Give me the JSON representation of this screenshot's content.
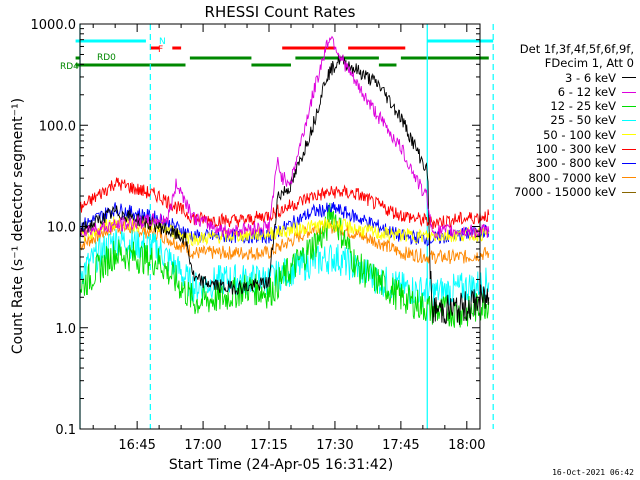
{
  "chart_data": {
    "type": "line",
    "title": "RHESSI Count Rates",
    "xlabel": "Start Time (24-Apr-05 16:31:42)",
    "ylabel": "Count Rate (s⁻¹ detector segment⁻¹)",
    "y_scale": "log",
    "ylim": [
      0.1,
      1000
    ],
    "xlim_minutes_after_1630": [
      2,
      93
    ],
    "x_ticks": [
      "16:45",
      "17:00",
      "17:15",
      "17:30",
      "17:45",
      "18:00"
    ],
    "y_ticks": [
      "0.1",
      "1.0",
      "10.0",
      "100.0",
      "1000.0"
    ],
    "legend_header": [
      "Det 1f,3f,4f,5f,6f,9f,",
      "FDecim 1, Att 0"
    ],
    "series": [
      {
        "name": "3 - 6 keV",
        "color": "#000000",
        "x": [
          "16:32",
          "16:40",
          "16:50",
          "16:56",
          "16:58",
          "17:05",
          "17:10",
          "17:15",
          "17:17",
          "17:20",
          "17:25",
          "17:28",
          "17:31",
          "17:35",
          "17:40",
          "17:45",
          "17:51",
          "17:52",
          "17:58",
          "18:05"
        ],
        "y": [
          9,
          14,
          10,
          7.5,
          3,
          2.5,
          2.5,
          2.8,
          20,
          25,
          100,
          300,
          450,
          350,
          250,
          120,
          35,
          1.5,
          1.5,
          2
        ]
      },
      {
        "name": "6 - 12 keV",
        "color": "#dd00dd",
        "x": [
          "16:32",
          "16:45",
          "16:52",
          "16:54",
          "16:58",
          "17:05",
          "17:15",
          "17:17",
          "17:18",
          "17:20",
          "17:25",
          "17:28",
          "17:29",
          "17:31",
          "17:35",
          "17:40",
          "17:45",
          "17:50",
          "17:51",
          "17:52",
          "18:05"
        ],
        "y": [
          9,
          11,
          12,
          27,
          12,
          9,
          10,
          45,
          30,
          28,
          200,
          600,
          780,
          500,
          250,
          120,
          60,
          22,
          20,
          9,
          9
        ]
      },
      {
        "name": "12 - 25 keV",
        "color": "#00dd00",
        "x": [
          "16:32",
          "16:40",
          "16:50",
          "16:58",
          "17:05",
          "17:10",
          "17:15",
          "17:25",
          "17:28",
          "17:29",
          "17:35",
          "17:45",
          "17:52",
          "18:00",
          "18:05"
        ],
        "y": [
          2.5,
          5.5,
          4.5,
          1.8,
          2,
          2.5,
          2.2,
          6.5,
          9,
          15,
          4,
          2,
          1.5,
          1.4,
          1.8
        ]
      },
      {
        "name": "25 - 50 keV",
        "color": "#00ffff",
        "x": [
          "16:32",
          "16:40",
          "16:50",
          "16:58",
          "17:05",
          "17:10",
          "17:15",
          "17:25",
          "17:30",
          "17:40",
          "17:45",
          "17:52",
          "18:00",
          "18:05"
        ],
        "y": [
          3.5,
          7.5,
          6,
          2.5,
          3,
          3,
          3,
          4.5,
          5,
          3,
          2.5,
          2.2,
          2.5,
          2.8
        ]
      },
      {
        "name": "50 - 100 keV",
        "color": "#ffff00",
        "x": [
          "16:32",
          "16:40",
          "16:50",
          "16:58",
          "17:05",
          "17:15",
          "17:25",
          "17:30",
          "17:40",
          "17:50",
          "18:05"
        ],
        "y": [
          8,
          11,
          10,
          7.5,
          8,
          8.5,
          10,
          10.5,
          8.5,
          8,
          8.5
        ]
      },
      {
        "name": "100 - 300 keV",
        "color": "#ff0000",
        "x": [
          "16:32",
          "16:40",
          "16:50",
          "16:58",
          "17:05",
          "17:10",
          "17:15",
          "17:25",
          "17:30",
          "17:35",
          "17:40",
          "17:45",
          "17:52",
          "18:00",
          "18:05"
        ],
        "y": [
          15,
          27,
          20,
          12,
          11.5,
          11.5,
          13,
          20,
          22,
          21,
          16,
          13,
          11,
          12,
          13
        ]
      },
      {
        "name": "300 - 800 keV",
        "color": "#0000ff",
        "x": [
          "16:32",
          "16:40",
          "16:50",
          "16:58",
          "17:05",
          "17:10",
          "17:15",
          "17:25",
          "17:30",
          "17:40",
          "17:45",
          "17:52",
          "18:00",
          "18:05"
        ],
        "y": [
          10,
          15,
          12,
          8,
          8,
          8,
          8,
          14,
          15,
          10,
          8,
          7.5,
          8.5,
          9
        ]
      },
      {
        "name": "800 - 7000 keV",
        "color": "#ff8800",
        "x": [
          "16:32",
          "16:40",
          "16:50",
          "16:58",
          "17:05",
          "17:10",
          "17:15",
          "17:25",
          "17:30",
          "17:40",
          "17:45",
          "17:52",
          "18:00",
          "18:05"
        ],
        "y": [
          6.5,
          10,
          8.5,
          5.5,
          5.5,
          5.5,
          5.5,
          9.5,
          10,
          7,
          5.5,
          5,
          5,
          5.5
        ]
      },
      {
        "name": "7000 - 15000 keV",
        "color": "#886600",
        "x": [],
        "y": []
      }
    ],
    "flag_bars": {
      "N": {
        "color": "#00ffff",
        "segments": [
          [
            "16:31",
            "16:47"
          ],
          [
            "17:51",
            "18:06"
          ]
        ],
        "label": "N"
      },
      "F": {
        "color": "#ff0000",
        "segments": [
          [
            "16:48",
            "16:50"
          ],
          [
            "16:53",
            "16:55"
          ],
          [
            "17:18",
            "17:30"
          ],
          [
            "17:33",
            "17:46"
          ]
        ],
        "label": "F"
      },
      "RD0": {
        "color": "#008800",
        "segments": [
          [
            "16:31",
            "16:32"
          ],
          [
            "16:57",
            "17:11"
          ],
          [
            "17:21",
            "17:40"
          ],
          [
            "17:45",
            "18:05"
          ]
        ],
        "label": "RD0"
      },
      "RD4": {
        "color": "#008800",
        "segments": [
          [
            "16:31",
            "16:56"
          ],
          [
            "17:11",
            "17:20"
          ],
          [
            "17:40",
            "17:44"
          ]
        ],
        "label": "RD4"
      }
    },
    "vertical_lines": [
      {
        "time": "16:32",
        "style": "solid",
        "color": "#00ffff"
      },
      {
        "time": "16:48",
        "style": "dashed",
        "color": "#00ffff"
      },
      {
        "time": "17:51",
        "style": "solid",
        "color": "#00ffff"
      },
      {
        "time": "18:06",
        "style": "dashed",
        "color": "#00ffff"
      }
    ],
    "grid": false,
    "legend_placement": "top-right, outside plot"
  },
  "footer_timestamp": "16-Oct-2021 06:42"
}
